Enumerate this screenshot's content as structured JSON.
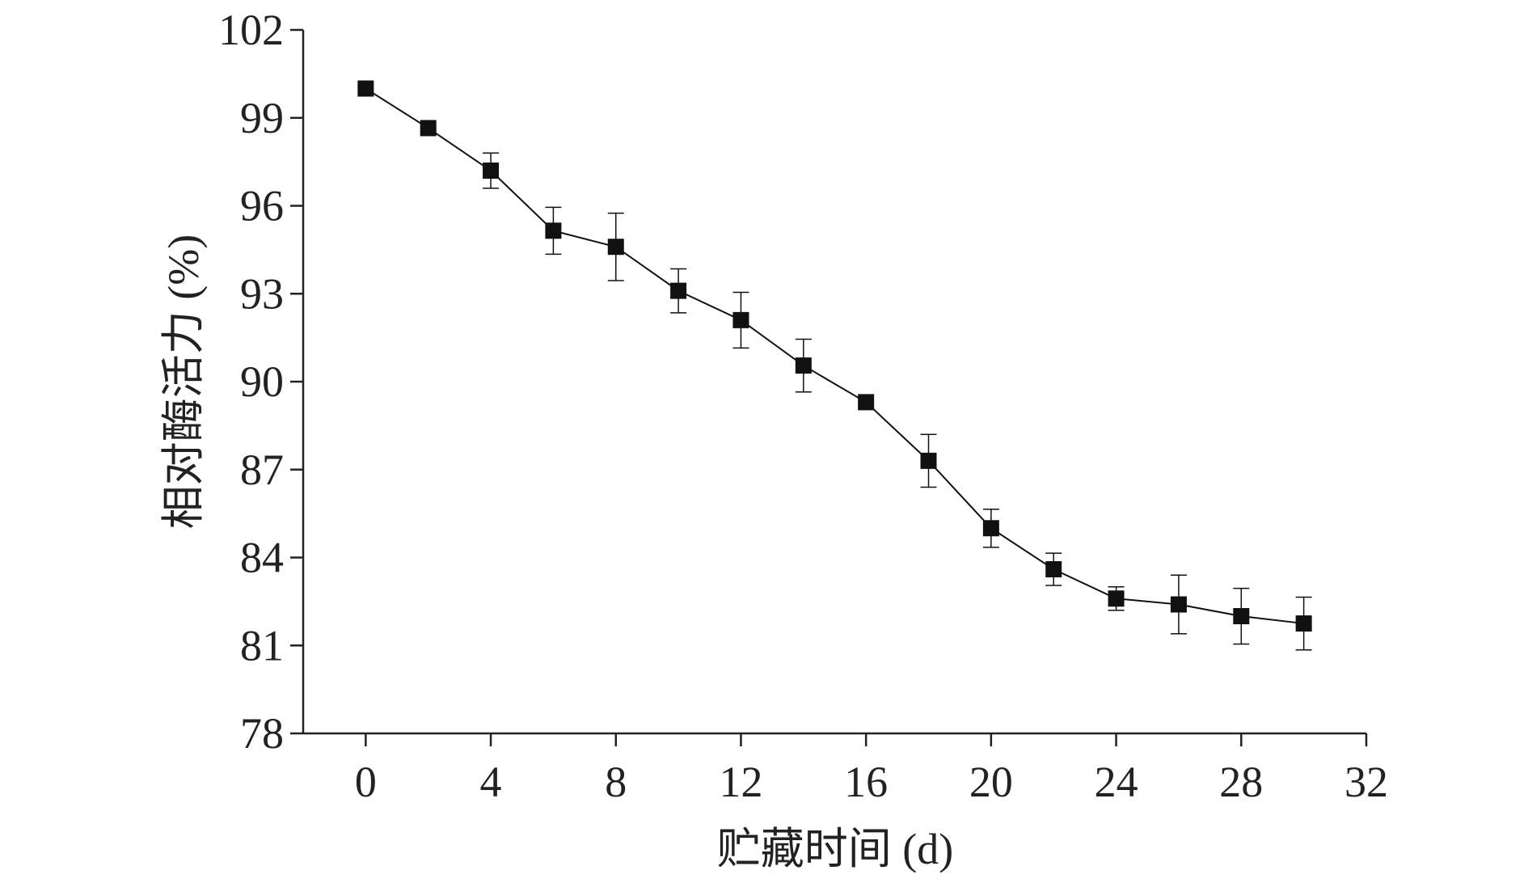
{
  "chart_data": {
    "type": "line",
    "xlabel": "贮藏时间 (d)",
    "ylabel": "相对酶活力 (%)",
    "x": [
      0,
      2,
      4,
      6,
      8,
      10,
      12,
      14,
      16,
      18,
      20,
      22,
      24,
      26,
      28,
      30
    ],
    "series": [
      {
        "color": "#111111",
        "values": [
          100,
          98.65,
          97.2,
          95.15,
          94.6,
          93.1,
          92.1,
          90.55,
          89.3,
          87.3,
          85.0,
          83.6,
          82.6,
          82.4,
          82.0,
          81.75
        ],
        "errors": [
          0,
          0,
          0.6,
          0.8,
          1.15,
          0.75,
          0.95,
          0.9,
          0,
          0.9,
          0.65,
          0.55,
          0.4,
          1.0,
          0.95,
          0.9
        ]
      }
    ],
    "xlim": [
      -2,
      32
    ],
    "xticks": [
      0,
      4,
      8,
      12,
      16,
      20,
      24,
      28,
      32
    ],
    "ylim": [
      78,
      102
    ],
    "yticks": [
      78,
      81,
      84,
      87,
      90,
      93,
      96,
      99,
      102
    ]
  }
}
